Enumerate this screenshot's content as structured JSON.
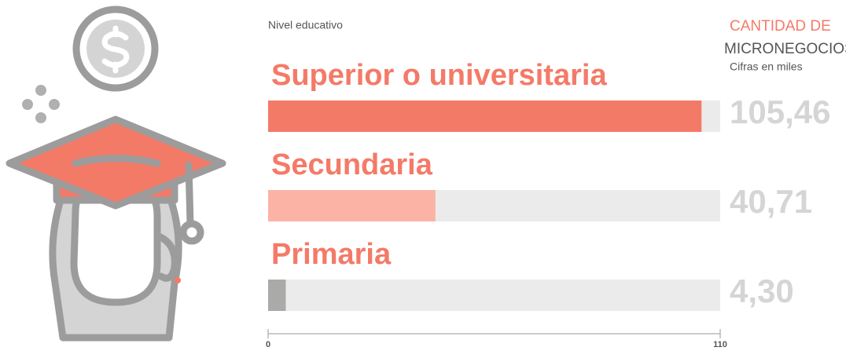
{
  "chart_data": {
    "type": "bar",
    "orientation": "horizontal",
    "axis_label": "Nivel educativo",
    "value_heading": [
      "CANTIDAD DE",
      "MICRONEGOCIOS"
    ],
    "unit_note": "Cifras en miles",
    "categories": [
      "Superior o universitaria",
      "Secundaria",
      "Primaria"
    ],
    "values": [
      105.46,
      40.71,
      4.3
    ],
    "value_labels": [
      "105,46",
      "40,71",
      "4,30"
    ],
    "colors": [
      "#f47a68",
      "#fbb3a6",
      "#aaaaa8"
    ],
    "xlim": [
      0,
      110
    ],
    "xticks": [
      0,
      110
    ]
  }
}
